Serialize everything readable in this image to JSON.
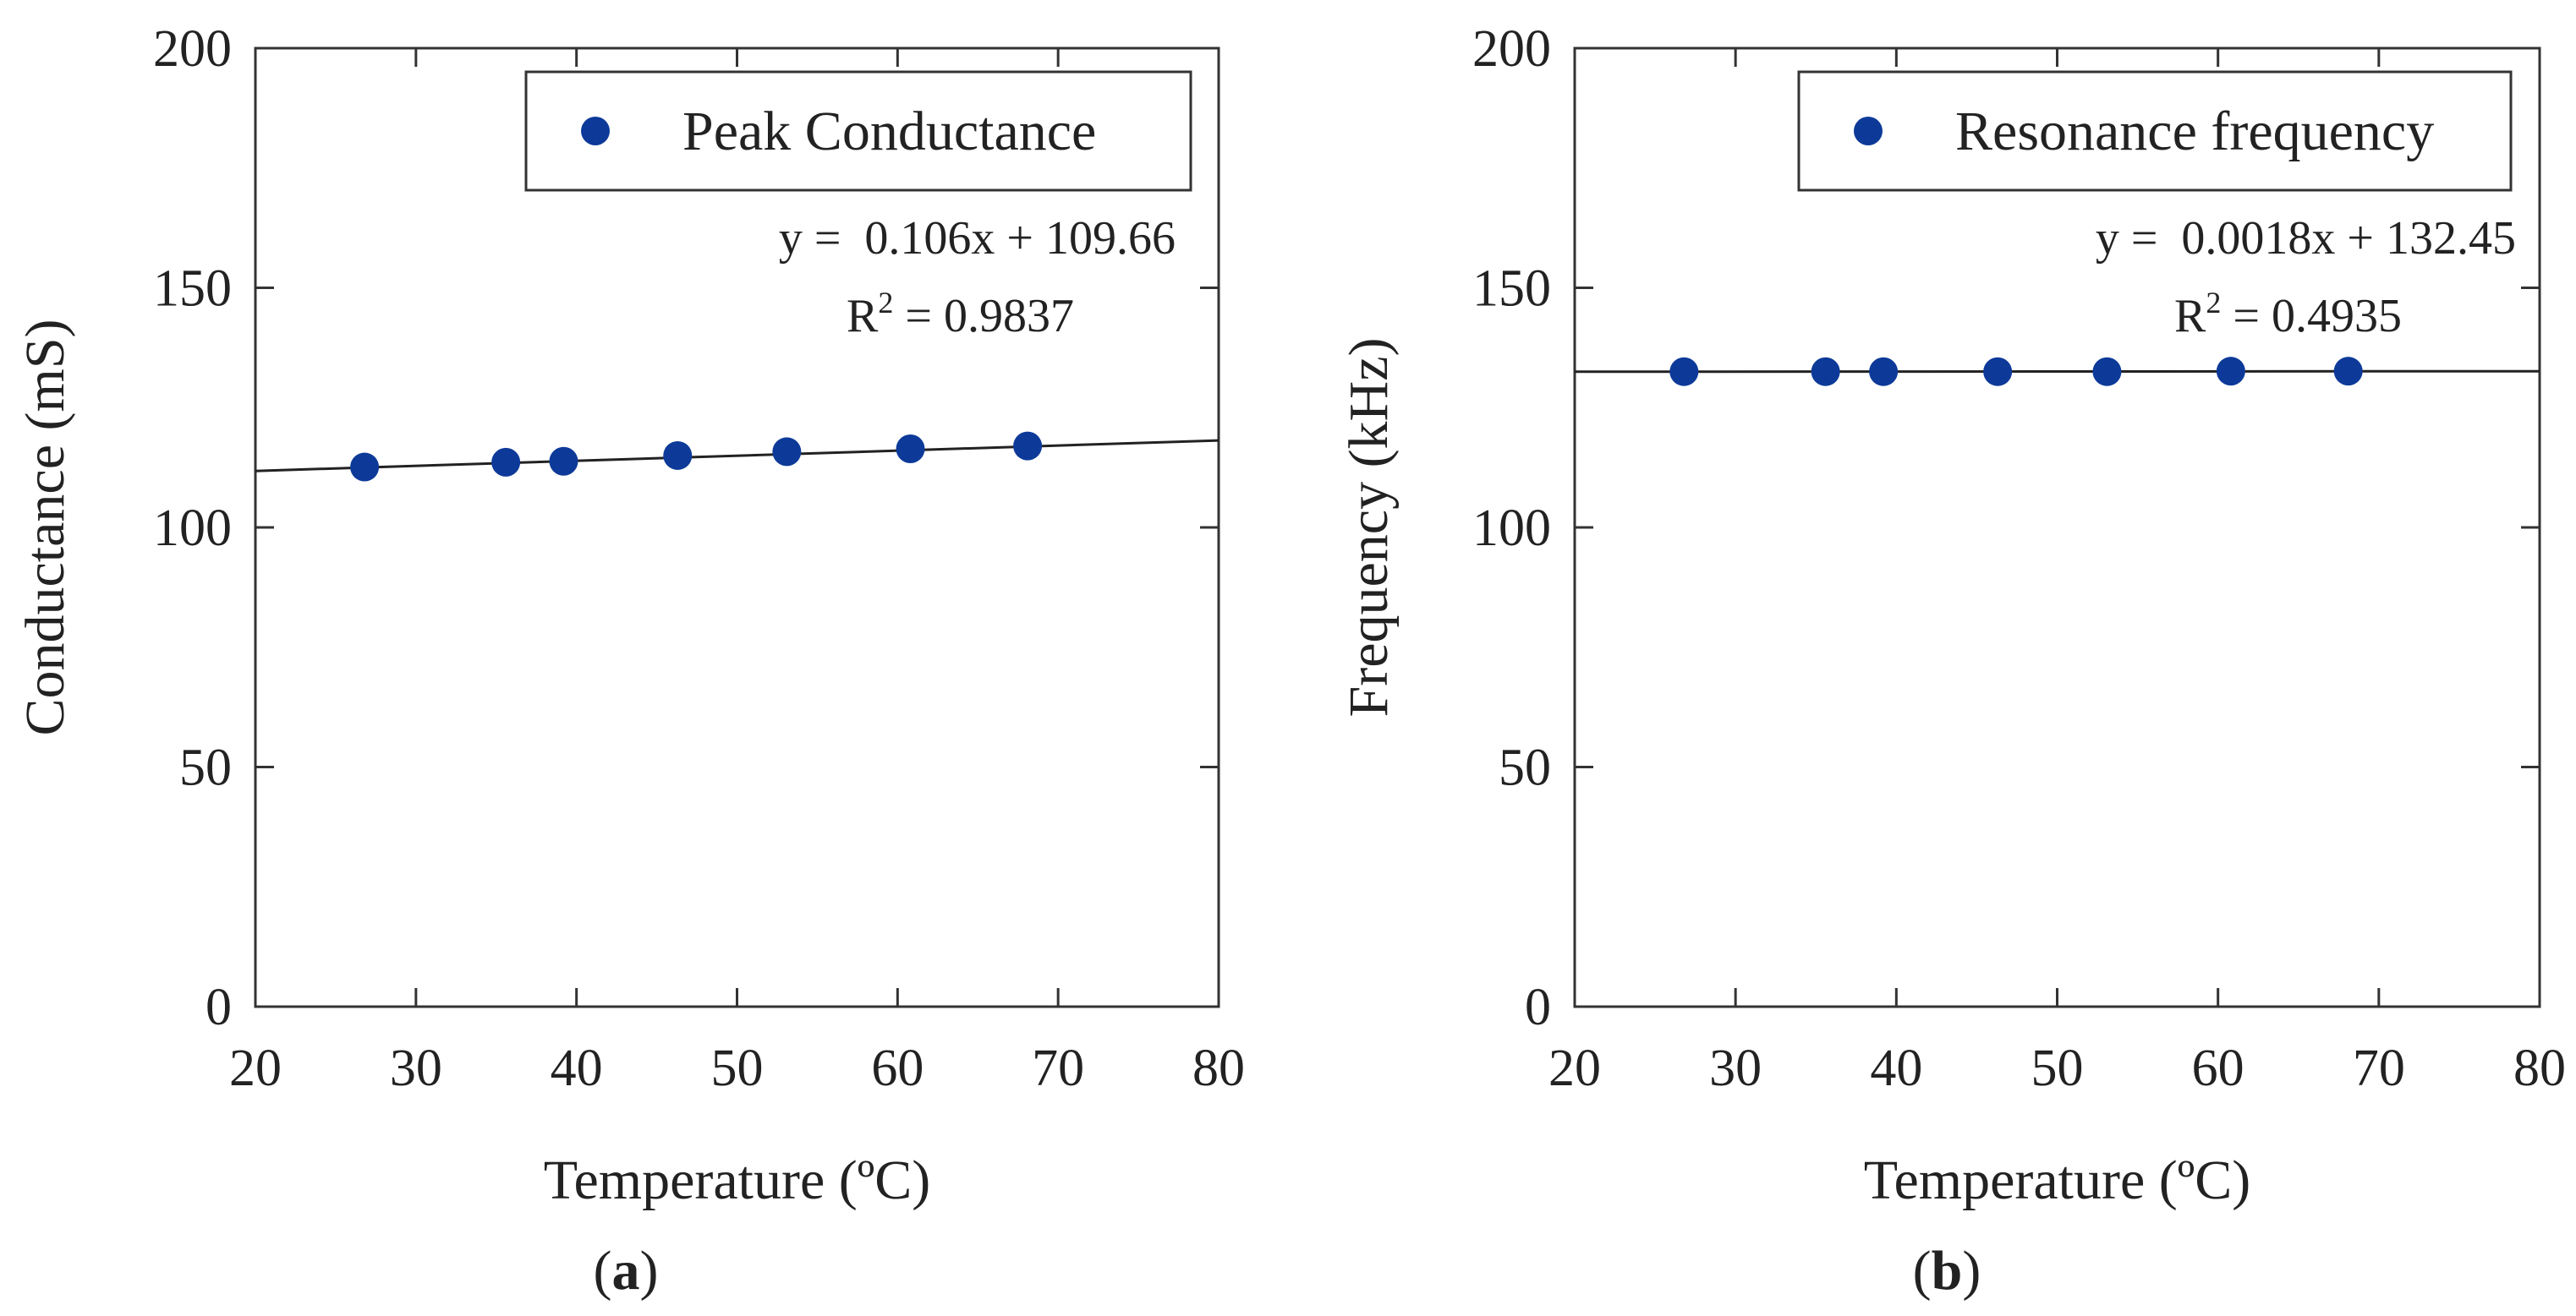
{
  "chart_data": [
    {
      "type": "scatter",
      "panel_label": "a",
      "xlabel": "Temperature (ºC)",
      "ylabel": "Conductance (mS)",
      "xlim": [
        20,
        80
      ],
      "ylim": [
        0,
        200
      ],
      "xticks": [
        20,
        30,
        40,
        50,
        60,
        70,
        80
      ],
      "yticks": [
        0,
        50,
        100,
        150,
        200
      ],
      "grid": false,
      "legend_position": "top-right",
      "series": [
        {
          "name": "Peak Conductance",
          "color": "#0d3a99",
          "x": [
            26.8,
            35.6,
            39.2,
            46.3,
            53.1,
            60.8,
            68.1
          ],
          "y": [
            112.6,
            113.6,
            113.8,
            115.0,
            115.8,
            116.4,
            117.0
          ]
        }
      ],
      "trendline": {
        "slope": 0.106,
        "intercept": 109.66,
        "equation_prefix": "y = ",
        "equation_body": "0.106x + 109.66",
        "r2_label": "R",
        "r2_sup": "2",
        "r2_value": " = 0.9837"
      }
    },
    {
      "type": "scatter",
      "panel_label": "b",
      "xlabel": "Temperature (ºC)",
      "ylabel": "Frequency (kHz)",
      "xlim": [
        20,
        80
      ],
      "ylim": [
        0,
        200
      ],
      "xticks": [
        20,
        30,
        40,
        50,
        60,
        70,
        80
      ],
      "yticks": [
        0,
        50,
        100,
        150,
        200
      ],
      "grid": false,
      "legend_position": "top-right",
      "series": [
        {
          "name": "Resonance frequency",
          "color": "#0d3a99",
          "x": [
            26.8,
            35.6,
            39.2,
            46.3,
            53.1,
            60.8,
            68.1
          ],
          "y": [
            132.5,
            132.5,
            132.5,
            132.5,
            132.5,
            132.6,
            132.6
          ]
        }
      ],
      "trendline": {
        "slope": 0.0018,
        "intercept": 132.45,
        "equation_prefix": "y = ",
        "equation_body": "0.0018x + 132.45",
        "r2_label": "R",
        "r2_sup": "2",
        "r2_value": " = 0.4935"
      }
    }
  ]
}
